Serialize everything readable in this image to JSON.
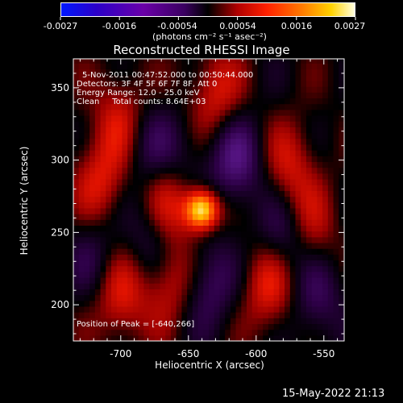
{
  "chart_data": {
    "type": "heatmap",
    "title": "Reconstructed RHESSI Image",
    "xlabel": "Heliocentric X (arcsec)",
    "ylabel": "Heliocentric Y (arcsec)",
    "xlim": [
      -735,
      -535
    ],
    "ylim": [
      175,
      370
    ],
    "xticks": [
      -700,
      -650,
      -600,
      -550
    ],
    "yticks": [
      200,
      250,
      300,
      350
    ],
    "colorbar": {
      "ticks": [
        "-0.0027",
        "-0.0016",
        "-0.00054",
        "0.00054",
        "0.0016",
        "0.0027"
      ],
      "range": [
        -0.0027,
        0.0027
      ],
      "unit_label": "(photons cm⁻² s⁻¹ asec⁻²)"
    },
    "annotations": {
      "time_range": "5-Nov-2011 00:47:52.000 to 00:50:44.000",
      "detectors": "Detectors: 3F 4F 5F 6F 7F 8F, Att 0",
      "energy_range": "Energy Range: 12.0 - 25.0 keV",
      "method_counts": "Clean     Total counts: 8.64E+03",
      "peak_position": "Position of Peak = [-640,266]"
    },
    "features": [
      {
        "x": -640,
        "y": 266,
        "value": 0.0027
      },
      {
        "x": -665,
        "y": 270,
        "value": 0.0012
      },
      {
        "x": -665,
        "y": 220,
        "value": 0.0011
      },
      {
        "x": -700,
        "y": 205,
        "value": 0.001
      },
      {
        "x": -590,
        "y": 215,
        "value": 0.0012
      },
      {
        "x": -715,
        "y": 285,
        "value": 0.001
      },
      {
        "x": -700,
        "y": 330,
        "value": 0.0009
      },
      {
        "x": -630,
        "y": 345,
        "value": 0.001
      },
      {
        "x": -575,
        "y": 295,
        "value": 0.0009
      },
      {
        "x": -560,
        "y": 250,
        "value": 0.0008
      },
      {
        "x": -615,
        "y": 300,
        "value": -0.0012
      },
      {
        "x": -675,
        "y": 245,
        "value": -0.001
      },
      {
        "x": -635,
        "y": 215,
        "value": -0.0009
      },
      {
        "x": -580,
        "y": 245,
        "value": -0.001
      },
      {
        "x": -555,
        "y": 205,
        "value": -0.0008
      },
      {
        "x": -680,
        "y": 310,
        "value": -0.0007
      },
      {
        "x": -720,
        "y": 235,
        "value": -0.0006
      },
      {
        "x": -655,
        "y": 300,
        "value": -0.0005
      }
    ]
  },
  "footer": {
    "timestamp": "15-May-2022 21:13"
  }
}
